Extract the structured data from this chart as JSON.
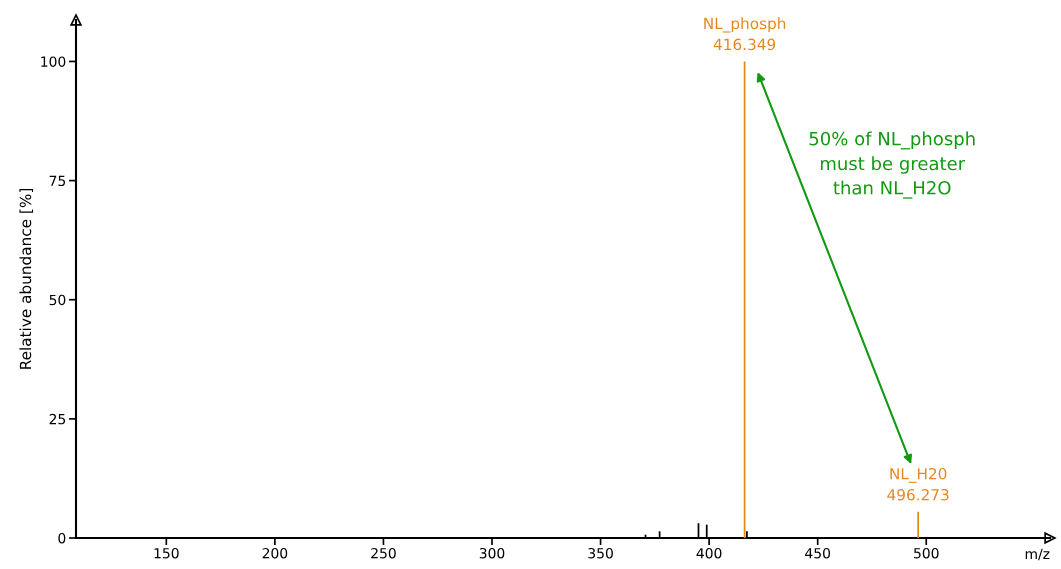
{
  "chart_data": {
    "type": "bar",
    "xlabel": "m/z",
    "ylabel": "Relative abundance [%]",
    "series": [
      {
        "color": "#000000",
        "x": [
          370.7,
          377.2,
          395.1,
          398.9,
          417.4
        ],
        "values": [
          0.7,
          1.4,
          3.1,
          2.8,
          1.4
        ]
      },
      {
        "color": "#e8871e",
        "x": [
          416.349,
          496.273
        ],
        "values": [
          100,
          5.5
        ]
      }
    ],
    "annotations": [
      {
        "text": "NL_phosph\n416.349",
        "x": 416.349,
        "y": 100
      },
      {
        "text": "NL_H20\n496.273",
        "x": 496.273,
        "y": 5.5
      },
      "50% of NL_phosph\nmust be greater\nthan NL_H2O"
    ],
    "xlim": [
      108.4,
      557
    ],
    "ylim": [
      0,
      108.7
    ],
    "xticks": [
      150,
      200,
      250,
      300,
      350,
      400,
      450,
      500
    ],
    "yticks": [
      0,
      25,
      50,
      75,
      100
    ],
    "grid": false,
    "legend": false
  }
}
